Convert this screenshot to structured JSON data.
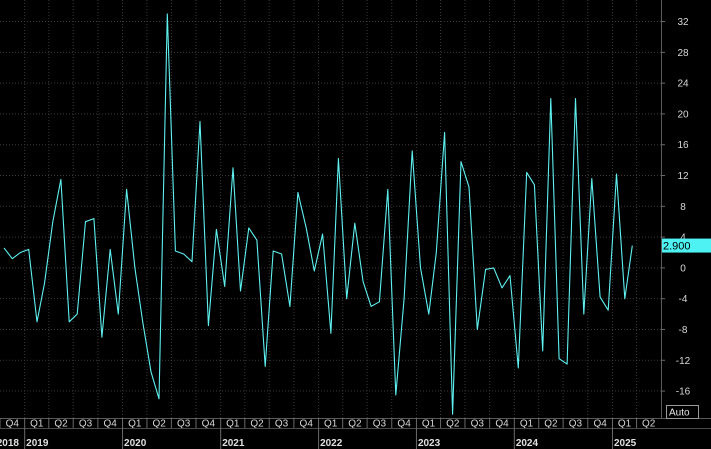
{
  "chart_data": {
    "type": "line",
    "title": "",
    "xlabel": "",
    "ylabel": "",
    "ylim": [
      -19.5,
      34.8
    ],
    "yticks": [
      32,
      28,
      24,
      20,
      16,
      12,
      8,
      4,
      0,
      -4,
      -8,
      -12,
      -16
    ],
    "series_color": "#5ff0f0",
    "grid": true,
    "last_value_label": "2.900",
    "auto_label": "Auto",
    "x_start": "2018-10-01",
    "x_end": "2025-06-30",
    "quarter_labels": [
      {
        "label": "Q4",
        "start": "2018-10-01"
      },
      {
        "label": "Q1",
        "start": "2019-01-01"
      },
      {
        "label": "Q2",
        "start": "2019-04-01"
      },
      {
        "label": "Q3",
        "start": "2019-07-01"
      },
      {
        "label": "Q4",
        "start": "2019-10-01"
      },
      {
        "label": "Q1",
        "start": "2020-01-01"
      },
      {
        "label": "Q2",
        "start": "2020-04-01"
      },
      {
        "label": "Q3",
        "start": "2020-07-01"
      },
      {
        "label": "Q4",
        "start": "2020-10-01"
      },
      {
        "label": "Q1",
        "start": "2021-01-01"
      },
      {
        "label": "Q2",
        "start": "2021-04-01"
      },
      {
        "label": "Q3",
        "start": "2021-07-01"
      },
      {
        "label": "Q4",
        "start": "2021-10-01"
      },
      {
        "label": "Q1",
        "start": "2022-01-01"
      },
      {
        "label": "Q2",
        "start": "2022-04-01"
      },
      {
        "label": "Q3",
        "start": "2022-07-01"
      },
      {
        "label": "Q4",
        "start": "2022-10-01"
      },
      {
        "label": "Q1",
        "start": "2023-01-01"
      },
      {
        "label": "Q2",
        "start": "2023-04-01"
      },
      {
        "label": "Q3",
        "start": "2023-07-01"
      },
      {
        "label": "Q4",
        "start": "2023-10-01"
      },
      {
        "label": "Q1",
        "start": "2024-01-01"
      },
      {
        "label": "Q2",
        "start": "2024-04-01"
      },
      {
        "label": "Q3",
        "start": "2024-07-01"
      },
      {
        "label": "Q4",
        "start": "2024-10-01"
      },
      {
        "label": "Q1",
        "start": "2025-01-01"
      },
      {
        "label": "Q2",
        "start": "2025-04-01"
      }
    ],
    "year_labels": [
      {
        "label": "2018",
        "start": "2018-01-01"
      },
      {
        "label": "2019",
        "start": "2019-01-01"
      },
      {
        "label": "2020",
        "start": "2020-01-01"
      },
      {
        "label": "2021",
        "start": "2021-01-01"
      },
      {
        "label": "2022",
        "start": "2022-01-01"
      },
      {
        "label": "2023",
        "start": "2023-01-01"
      },
      {
        "label": "2024",
        "start": "2024-01-01"
      },
      {
        "label": "2025",
        "start": "2025-01-01"
      }
    ],
    "series": [
      {
        "x": [
          "2018-10-01",
          "2018-11-01",
          "2018-12-01",
          "2019-01-01",
          "2019-02-01",
          "2019-03-01",
          "2019-04-01",
          "2019-05-01",
          "2019-06-01",
          "2019-07-01",
          "2019-08-01",
          "2019-09-01",
          "2019-10-01",
          "2019-11-01",
          "2019-12-01",
          "2020-01-01",
          "2020-02-01",
          "2020-03-01",
          "2020-04-01",
          "2020-05-01",
          "2020-06-01",
          "2020-07-01",
          "2020-08-01",
          "2020-09-01",
          "2020-10-01",
          "2020-11-01",
          "2020-12-01",
          "2021-01-01",
          "2021-02-01",
          "2021-03-01",
          "2021-04-01",
          "2021-05-01",
          "2021-06-01",
          "2021-07-01",
          "2021-08-01",
          "2021-09-01",
          "2021-10-01",
          "2021-11-01",
          "2021-12-01",
          "2022-01-01",
          "2022-02-01",
          "2022-03-01",
          "2022-04-01",
          "2022-05-01",
          "2022-06-01",
          "2022-07-01",
          "2022-08-01",
          "2022-09-01",
          "2022-10-01",
          "2022-11-01",
          "2022-12-01",
          "2023-01-01",
          "2023-02-01",
          "2023-03-01",
          "2023-04-01",
          "2023-05-01",
          "2023-06-01",
          "2023-07-01",
          "2023-08-01",
          "2023-09-01",
          "2023-10-01",
          "2023-11-01",
          "2023-12-01",
          "2024-01-01",
          "2024-02-01",
          "2024-03-01",
          "2024-04-01",
          "2024-05-01",
          "2024-06-01",
          "2024-07-01",
          "2024-08-01",
          "2024-09-01",
          "2024-10-01",
          "2024-11-01",
          "2024-12-01",
          "2025-01-01",
          "2025-02-01",
          "2025-03-01"
        ],
        "values": [
          2.6,
          1.2,
          2.0,
          2.4,
          -7.0,
          -2.0,
          6.0,
          11.5,
          -7.0,
          -6.0,
          6.0,
          6.4,
          -9.0,
          2.4,
          -6.0,
          10.2,
          0.0,
          -7.0,
          -13.5,
          -17.0,
          33.0,
          2.2,
          1.8,
          0.8,
          19.0,
          -7.5,
          5.0,
          -2.4,
          13.0,
          -3.0,
          5.2,
          3.6,
          -12.8,
          2.2,
          1.8,
          -5.0,
          9.8,
          5.2,
          -0.4,
          4.4,
          -8.5,
          14.2,
          -4.0,
          5.8,
          -1.8,
          -5.0,
          -4.4,
          10.2,
          -16.5,
          -4.0,
          15.2,
          0.0,
          -6.0,
          2.0,
          17.6,
          -19.0,
          13.8,
          10.5,
          -8.0,
          -0.2,
          0.0,
          -2.6,
          -1.0,
          -13.0,
          12.4,
          10.8,
          -10.8,
          22.0,
          -11.8,
          -12.5,
          22.0,
          -6.0,
          11.6,
          -3.8,
          -5.5,
          12.2,
          -4.0,
          2.9
        ]
      }
    ]
  }
}
